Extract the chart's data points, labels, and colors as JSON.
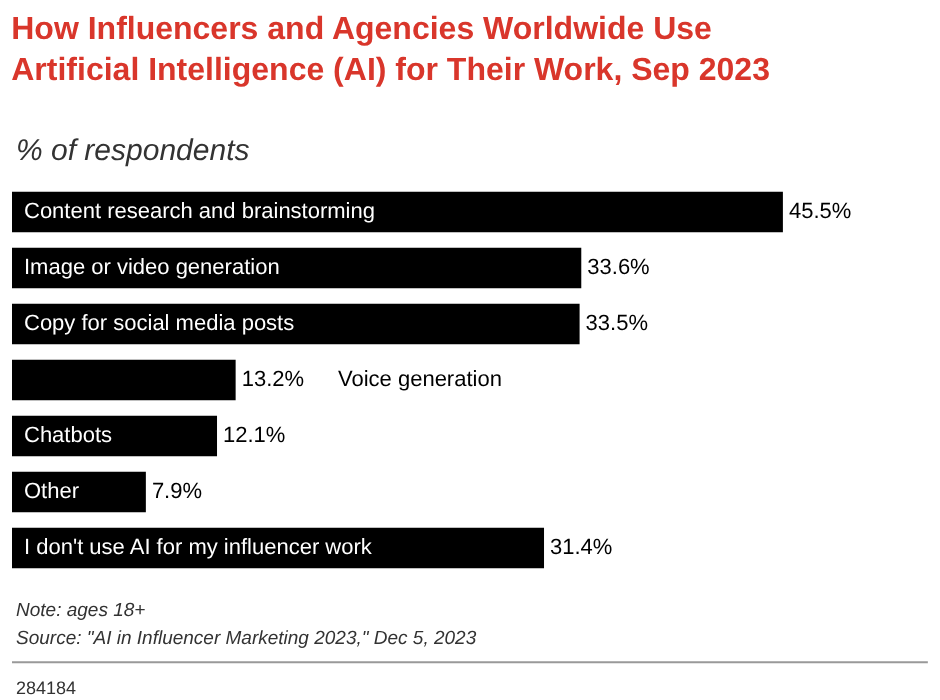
{
  "chart_data": {
    "type": "bar",
    "orientation": "horizontal",
    "title": "How Influencers and Agencies Worldwide Use\nArtificial Intelligence (AI) for Their Work, Sep 2023",
    "subtitle": "% of respondents",
    "categories": [
      "Content research and brainstorming",
      "Image or video generation",
      "Copy for social media posts",
      "Voice generation",
      "Chatbots",
      "Other",
      "I don't use AI for my influencer work"
    ],
    "values": [
      45.5,
      33.6,
      33.5,
      13.2,
      12.1,
      7.9,
      31.4
    ],
    "value_labels": [
      "45.5%",
      "33.6%",
      "33.5%",
      "13.2%",
      "12.1%",
      "7.9%",
      "31.4%"
    ],
    "color": "#000000",
    "legend": false,
    "annotations": [
      "Note: ages 18+",
      "Source: \"AI in Influencer Marketing 2023,\" Dec 5, 2023",
      "284184"
    ]
  }
}
